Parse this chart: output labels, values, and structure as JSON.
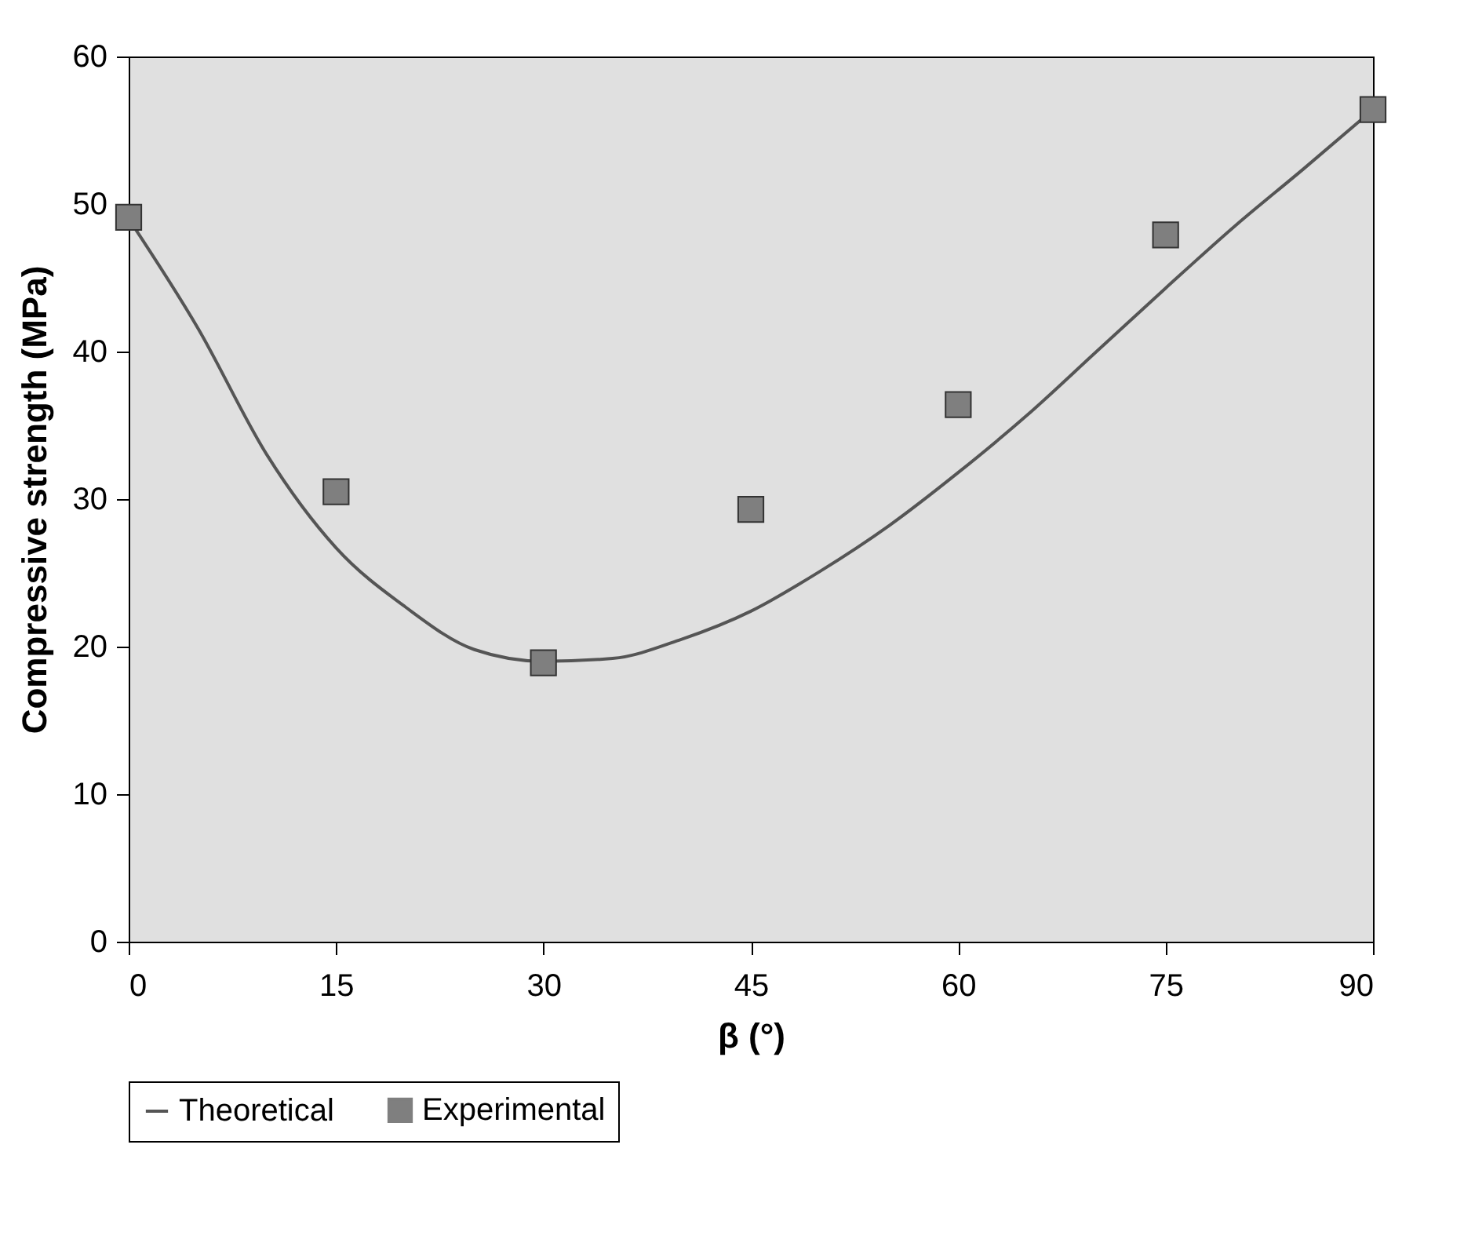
{
  "chart_data": {
    "type": "scatter",
    "xlabel": "β (°)",
    "ylabel": "Compressive strength (MPa)",
    "xlim": [
      0,
      90
    ],
    "ylim": [
      0,
      60
    ],
    "xticks": [
      0,
      15,
      30,
      45,
      60,
      75,
      90
    ],
    "yticks": [
      0,
      10,
      20,
      30,
      40,
      50,
      60
    ],
    "legend": "bottom",
    "series": [
      {
        "name": "Theoretical",
        "type": "line",
        "color": "#555555",
        "line_style": "solid",
        "x": [
          0,
          5,
          10,
          15,
          20,
          25,
          30,
          35,
          40,
          45,
          50,
          55,
          60,
          65,
          70,
          75,
          80,
          85,
          90
        ],
        "values": [
          49,
          41.6,
          33,
          26.7,
          22.7,
          19.8,
          19,
          19.2,
          20.5,
          22.4,
          25.1,
          28.2,
          31.8,
          35.7,
          40,
          44.3,
          48.5,
          52.4,
          56.4
        ]
      },
      {
        "name": "Experimental",
        "marker": "square",
        "color": "#7f7f7f",
        "x": [
          0,
          15,
          30,
          45,
          60,
          75,
          90
        ],
        "values": [
          49.1,
          30.5,
          18.9,
          29.3,
          36.4,
          47.9,
          56.4
        ]
      }
    ]
  }
}
